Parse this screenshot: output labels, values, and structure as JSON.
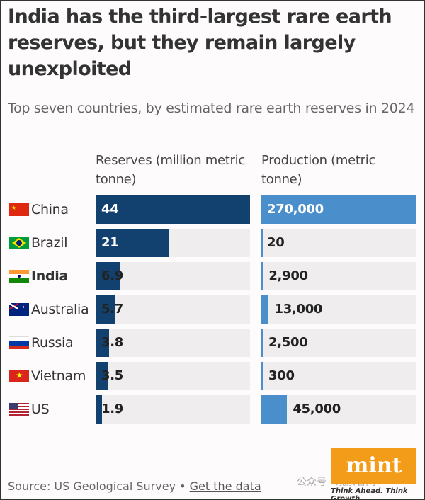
{
  "chart_data": {
    "type": "bar",
    "title": "India has the third-largest rare earth reserves, but they remain largely unexploited",
    "subtitle": "Top seven countries, by estimated rare earth reserves in 2024",
    "categories": [
      "China",
      "Brazil",
      "India",
      "Australia",
      "Russia",
      "Vietnam",
      "US"
    ],
    "highlight": "India",
    "series": [
      {
        "name": "Reserves (million metric tonne)",
        "values": [
          44,
          21,
          6.9,
          5.7,
          3.8,
          3.5,
          1.9
        ],
        "labels": [
          "44",
          "21",
          "6.9",
          "5.7",
          "3.8",
          "3.5",
          "1.9"
        ],
        "color": "#12416f"
      },
      {
        "name": "Production (metric tonne)",
        "values": [
          270000,
          20,
          2900,
          13000,
          2500,
          300,
          45000
        ],
        "labels": [
          "270,000",
          "20",
          "2,900",
          "13,000",
          "2,500",
          "300",
          "45,000"
        ],
        "color": "#4a8fcb"
      }
    ],
    "grid": false
  },
  "footer": {
    "source": "Source: US Geological Survey •",
    "link": "Get the data",
    "logo": "mint",
    "tagline": "Think Ahead. Think Growth.",
    "watermark": "公众号 · 观察者网"
  }
}
